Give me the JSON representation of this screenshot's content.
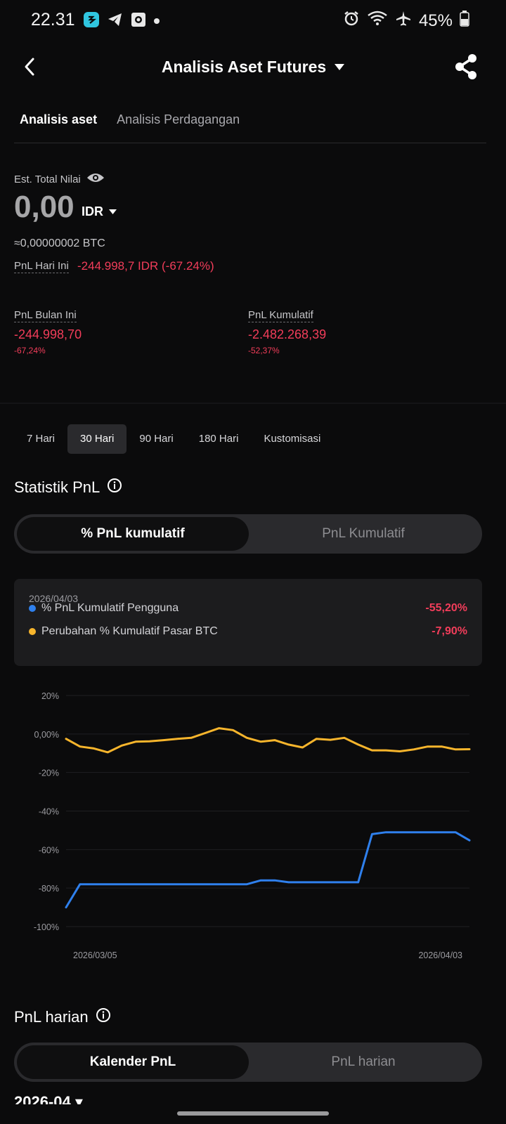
{
  "status_bar": {
    "time": "22.31",
    "battery": "45%"
  },
  "header": {
    "title": "Analisis Aset Futures"
  },
  "tabs": [
    {
      "label": "Analisis aset"
    },
    {
      "label": "Analisis Perdagangan"
    }
  ],
  "summary": {
    "est_label": "Est. Total Nilai",
    "total_value": "0,00",
    "currency": "IDR",
    "btc_equiv": "≈0,00000002 BTC",
    "pnl_today_label": "PnL Hari Ini",
    "pnl_today_value": "-244.998,7 IDR (-67.24%)"
  },
  "stats": {
    "month": {
      "label": "PnL Bulan Ini",
      "value": "-244.998,70",
      "pct": "-67,24%"
    },
    "cumulative": {
      "label": "PnL Kumulatif",
      "value": "-2.482.268,39",
      "pct": "-52,37%"
    }
  },
  "periods": [
    {
      "label": "7 Hari"
    },
    {
      "label": "30 Hari"
    },
    {
      "label": "90 Hari"
    },
    {
      "label": "180 Hari"
    },
    {
      "label": "Kustomisasi"
    }
  ],
  "pnl_stats": {
    "title": "Statistik PnL",
    "seg_active": "% PnL kumulatif",
    "seg_inactive": "PnL Kumulatif",
    "legend_date": "2026/04/03",
    "legend": [
      {
        "name": "% PnL Kumulatif Pengguna",
        "value": "-55,20%",
        "color": "#2f80ed"
      },
      {
        "name": "Perubahan % Kumulatif Pasar BTC",
        "value": "-7,90%",
        "color": "#f7b52c"
      }
    ]
  },
  "chart_data": {
    "type": "line",
    "y_ticks": [
      "20%",
      "0,00%",
      "-20%",
      "-40%",
      "-60%",
      "-80%",
      "-100%"
    ],
    "y_tick_values": [
      20,
      0,
      -20,
      -40,
      -60,
      -80,
      -100
    ],
    "ylim": [
      -100,
      20
    ],
    "x_tick_labels": [
      "2026/03/05",
      "2026/04/03"
    ],
    "x": [
      "2026/03/05",
      "2026/03/06",
      "2026/03/07",
      "2026/03/08",
      "2026/03/09",
      "2026/03/10",
      "2026/03/11",
      "2026/03/12",
      "2026/03/13",
      "2026/03/14",
      "2026/03/15",
      "2026/03/16",
      "2026/03/17",
      "2026/03/18",
      "2026/03/19",
      "2026/03/20",
      "2026/03/21",
      "2026/03/22",
      "2026/03/23",
      "2026/03/24",
      "2026/03/25",
      "2026/03/26",
      "2026/03/27",
      "2026/03/28",
      "2026/03/29",
      "2026/03/30",
      "2026/03/31",
      "2026/04/01",
      "2026/04/02",
      "2026/04/03"
    ],
    "series": [
      {
        "name": "% PnL Kumulatif Pengguna",
        "color": "#2f80ed",
        "values": [
          -90,
          -78,
          -78,
          -78,
          -78,
          -78,
          -78,
          -78,
          -78,
          -78,
          -78,
          -78,
          -78,
          -78,
          -76,
          -76,
          -77,
          -77,
          -77,
          -77,
          -77,
          -77,
          -52,
          -51,
          -51,
          -51,
          -51,
          -51,
          -51,
          -55.2
        ]
      },
      {
        "name": "Perubahan % Kumulatif Pasar BTC",
        "color": "#f7b52c",
        "values": [
          -2.5,
          -6.5,
          -7.5,
          -9.5,
          -6,
          -4,
          -3.8,
          -3.2,
          -2.5,
          -2,
          0.5,
          3,
          2,
          -2,
          -4,
          -3.2,
          -5.5,
          -7,
          -2.5,
          -3,
          -2,
          -5.5,
          -8.5,
          -8.5,
          -9,
          -8,
          -6.5,
          -6.5,
          -8,
          -7.9
        ]
      }
    ],
    "grid": true
  },
  "pnl_daily": {
    "title": "PnL harian",
    "seg_active": "Kalender PnL",
    "seg_inactive": "PnL harian",
    "cut_text": "2026-04 ▾"
  }
}
